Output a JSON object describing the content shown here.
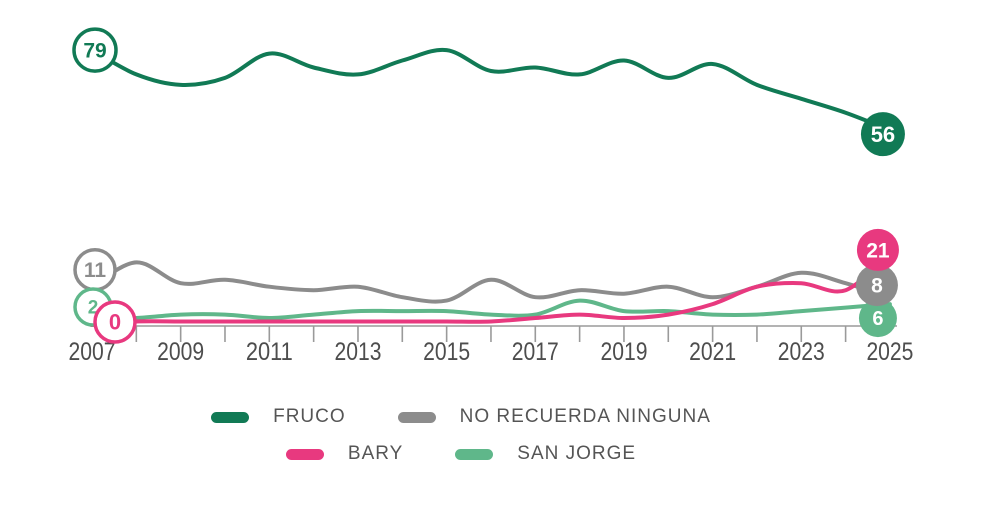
{
  "chart_data": {
    "type": "line",
    "title": "",
    "xlabel": "",
    "ylabel": "",
    "x": [
      2007,
      2008,
      2009,
      2010,
      2011,
      2012,
      2013,
      2014,
      2015,
      2016,
      2017,
      2018,
      2019,
      2020,
      2021,
      2022,
      2023,
      2024,
      2025
    ],
    "x_tick_labels": [
      "2007",
      "2009",
      "2011",
      "2013",
      "2015",
      "2017",
      "2019",
      "2021",
      "2023",
      "2025"
    ],
    "xlim": [
      2007,
      2025
    ],
    "ylim": [
      0,
      85
    ],
    "grid": false,
    "legend_position": "bottom",
    "background": "#FFFFFF",
    "axis_color": "#9A9A9A",
    "tick_label_color": "#4D4D4D",
    "legend_text_color": "#555555",
    "series": [
      {
        "name": "FRUCO",
        "color": "#117A55",
        "values": [
          79,
          72,
          69,
          71,
          78,
          74,
          72,
          76,
          79,
          73,
          74,
          72,
          76,
          71,
          75,
          69,
          65,
          61,
          56
        ],
        "start_badge": {
          "text": "79",
          "style": "outline",
          "r": 21,
          "fs": 21,
          "dx": 3,
          "dy": 0
        },
        "end_badge": {
          "text": "56",
          "style": "filled",
          "r": 22,
          "fs": 22,
          "dx": -7,
          "dy": 4
        }
      },
      {
        "name": "NO RECUERDA NINGUNA",
        "color": "#8C8C8C",
        "values": [
          11,
          18,
          12,
          13,
          11,
          10,
          11,
          8,
          7,
          13,
          8,
          10,
          9,
          11,
          8,
          11,
          15,
          12,
          8
        ],
        "start_badge": {
          "text": "11",
          "style": "outline",
          "r": 20,
          "fs": 21,
          "dx": 3,
          "dy": -17
        },
        "end_badge": {
          "text": "8",
          "style": "filled",
          "r": 21,
          "fs": 21,
          "dx": -13,
          "dy": -12
        }
      },
      {
        "name": "BARY",
        "color": "#E8397F",
        "values": [
          0,
          1,
          1,
          1,
          1,
          1,
          1,
          1,
          1,
          1,
          2,
          3,
          2,
          3,
          6,
          11,
          12,
          10,
          21
        ],
        "start_badge": {
          "text": "0",
          "style": "outline",
          "r": 20,
          "fs": 22,
          "dx": 23,
          "dy": -3
        },
        "end_badge": {
          "text": "21",
          "style": "filled",
          "r": 21,
          "fs": 21,
          "dx": -12,
          "dy": -2
        }
      },
      {
        "name": "SAN JORGE",
        "color": "#5FB78A",
        "values": [
          2,
          2,
          3,
          3,
          2,
          3,
          4,
          4,
          4,
          3,
          3,
          7,
          4,
          4,
          3,
          3,
          4,
          5,
          6
        ],
        "start_badge": {
          "text": "2",
          "style": "outline",
          "r": 18,
          "fs": 19,
          "dx": 1,
          "dy": -11
        },
        "end_badge": {
          "text": "6",
          "style": "filled",
          "r": 19,
          "fs": 20,
          "dx": -12,
          "dy": 14
        }
      }
    ]
  }
}
